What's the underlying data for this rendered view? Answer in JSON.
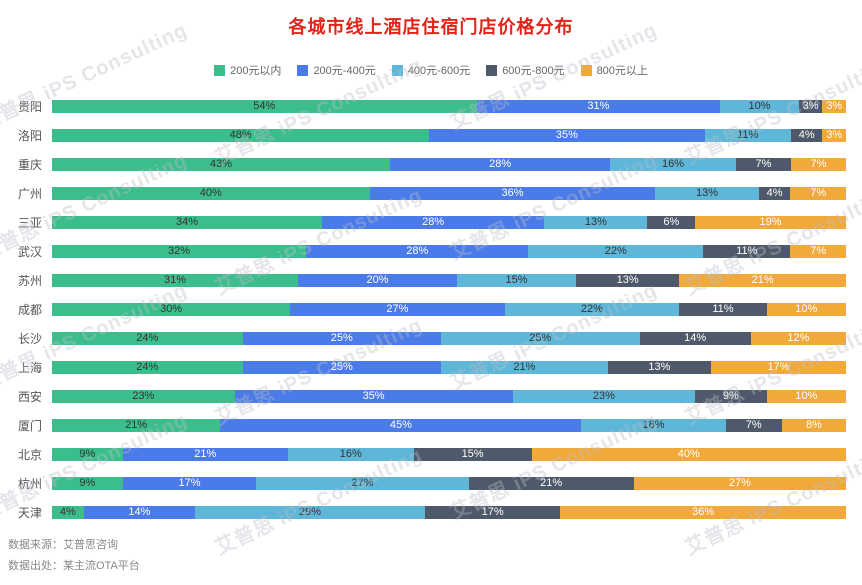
{
  "title": "各城市线上酒店住宿门店价格分布",
  "title_color": "#e2231a",
  "watermark": {
    "text": "艾普思 iPS Consulting"
  },
  "footer": {
    "source_line": "数据来源：艾普思咨询",
    "origin_line": "数据出处：某主流OTA平台"
  },
  "chart_data": {
    "type": "bar",
    "orientation": "horizontal",
    "stacked": true,
    "value_unit": "%",
    "legend_position": "top",
    "xlim": [
      0,
      100
    ],
    "grid": false,
    "categories": [
      "贵阳",
      "洛阳",
      "重庆",
      "广州",
      "三亚",
      "武汉",
      "苏州",
      "成都",
      "长沙",
      "上海",
      "西安",
      "厦门",
      "北京",
      "杭州",
      "天津"
    ],
    "series": [
      {
        "name": "200元以内",
        "color": "#3cbe8c",
        "values": [
          54,
          48,
          43,
          40,
          34,
          32,
          31,
          30,
          24,
          24,
          23,
          21,
          9,
          9,
          4
        ]
      },
      {
        "name": "200元-400元",
        "color": "#4a7be8",
        "values": [
          31,
          35,
          28,
          36,
          28,
          28,
          20,
          27,
          25,
          25,
          35,
          45,
          21,
          17,
          14
        ]
      },
      {
        "name": "400元-600元",
        "color": "#5eb7d8",
        "values": [
          10,
          11,
          16,
          13,
          13,
          22,
          15,
          22,
          25,
          21,
          23,
          18,
          16,
          27,
          29
        ]
      },
      {
        "name": "600元-800元",
        "color": "#4e5969",
        "values": [
          3,
          4,
          7,
          4,
          6,
          11,
          13,
          11,
          14,
          13,
          9,
          7,
          15,
          21,
          17
        ]
      },
      {
        "name": "800元以上",
        "color": "#f2a93c",
        "values": [
          3,
          3,
          7,
          7,
          19,
          7,
          21,
          10,
          12,
          17,
          10,
          8,
          40,
          27,
          36
        ]
      }
    ]
  }
}
